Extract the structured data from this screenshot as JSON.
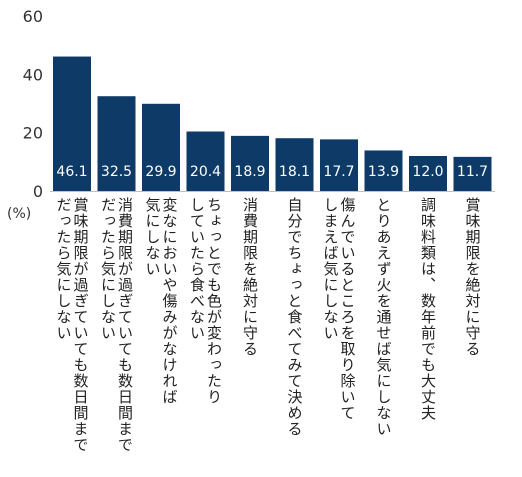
{
  "chart_data": {
    "type": "bar",
    "categories": [
      [
        "賞味期限が過ぎていても数日間まで",
        "だったら気にしない"
      ],
      [
        "消費期限が過ぎていても数日間まで",
        "だったら気にしない"
      ],
      [
        "変なにおいや傷みがなければ",
        "気にしない"
      ],
      [
        "ちょっとでも色が変わったり",
        "していたら食べない"
      ],
      [
        "消費期限を絶対に守る"
      ],
      [
        "自分でちょっと食べてみて決める"
      ],
      [
        "傷んでいるところを取り除いて",
        "しまえば気にしない"
      ],
      [
        "とりあえず火を通せば気にしない"
      ],
      [
        "調味料類は、数年前でも大丈夫"
      ],
      [
        "賞味期限を絶対に守る"
      ]
    ],
    "values": [
      46.1,
      32.5,
      29.9,
      20.4,
      18.9,
      18.1,
      17.7,
      13.9,
      12.0,
      11.7
    ],
    "value_labels": [
      "46.1",
      "32.5",
      "29.9",
      "20.4",
      "18.9",
      "18.1",
      "17.7",
      "13.9",
      "12.0",
      "11.7"
    ],
    "y_ticks": [
      "0",
      "20",
      "40",
      "60"
    ],
    "ylim": [
      0,
      60
    ],
    "unit": "(%)",
    "bar_color": "#0d3a66",
    "grid": false,
    "legend": "none"
  }
}
